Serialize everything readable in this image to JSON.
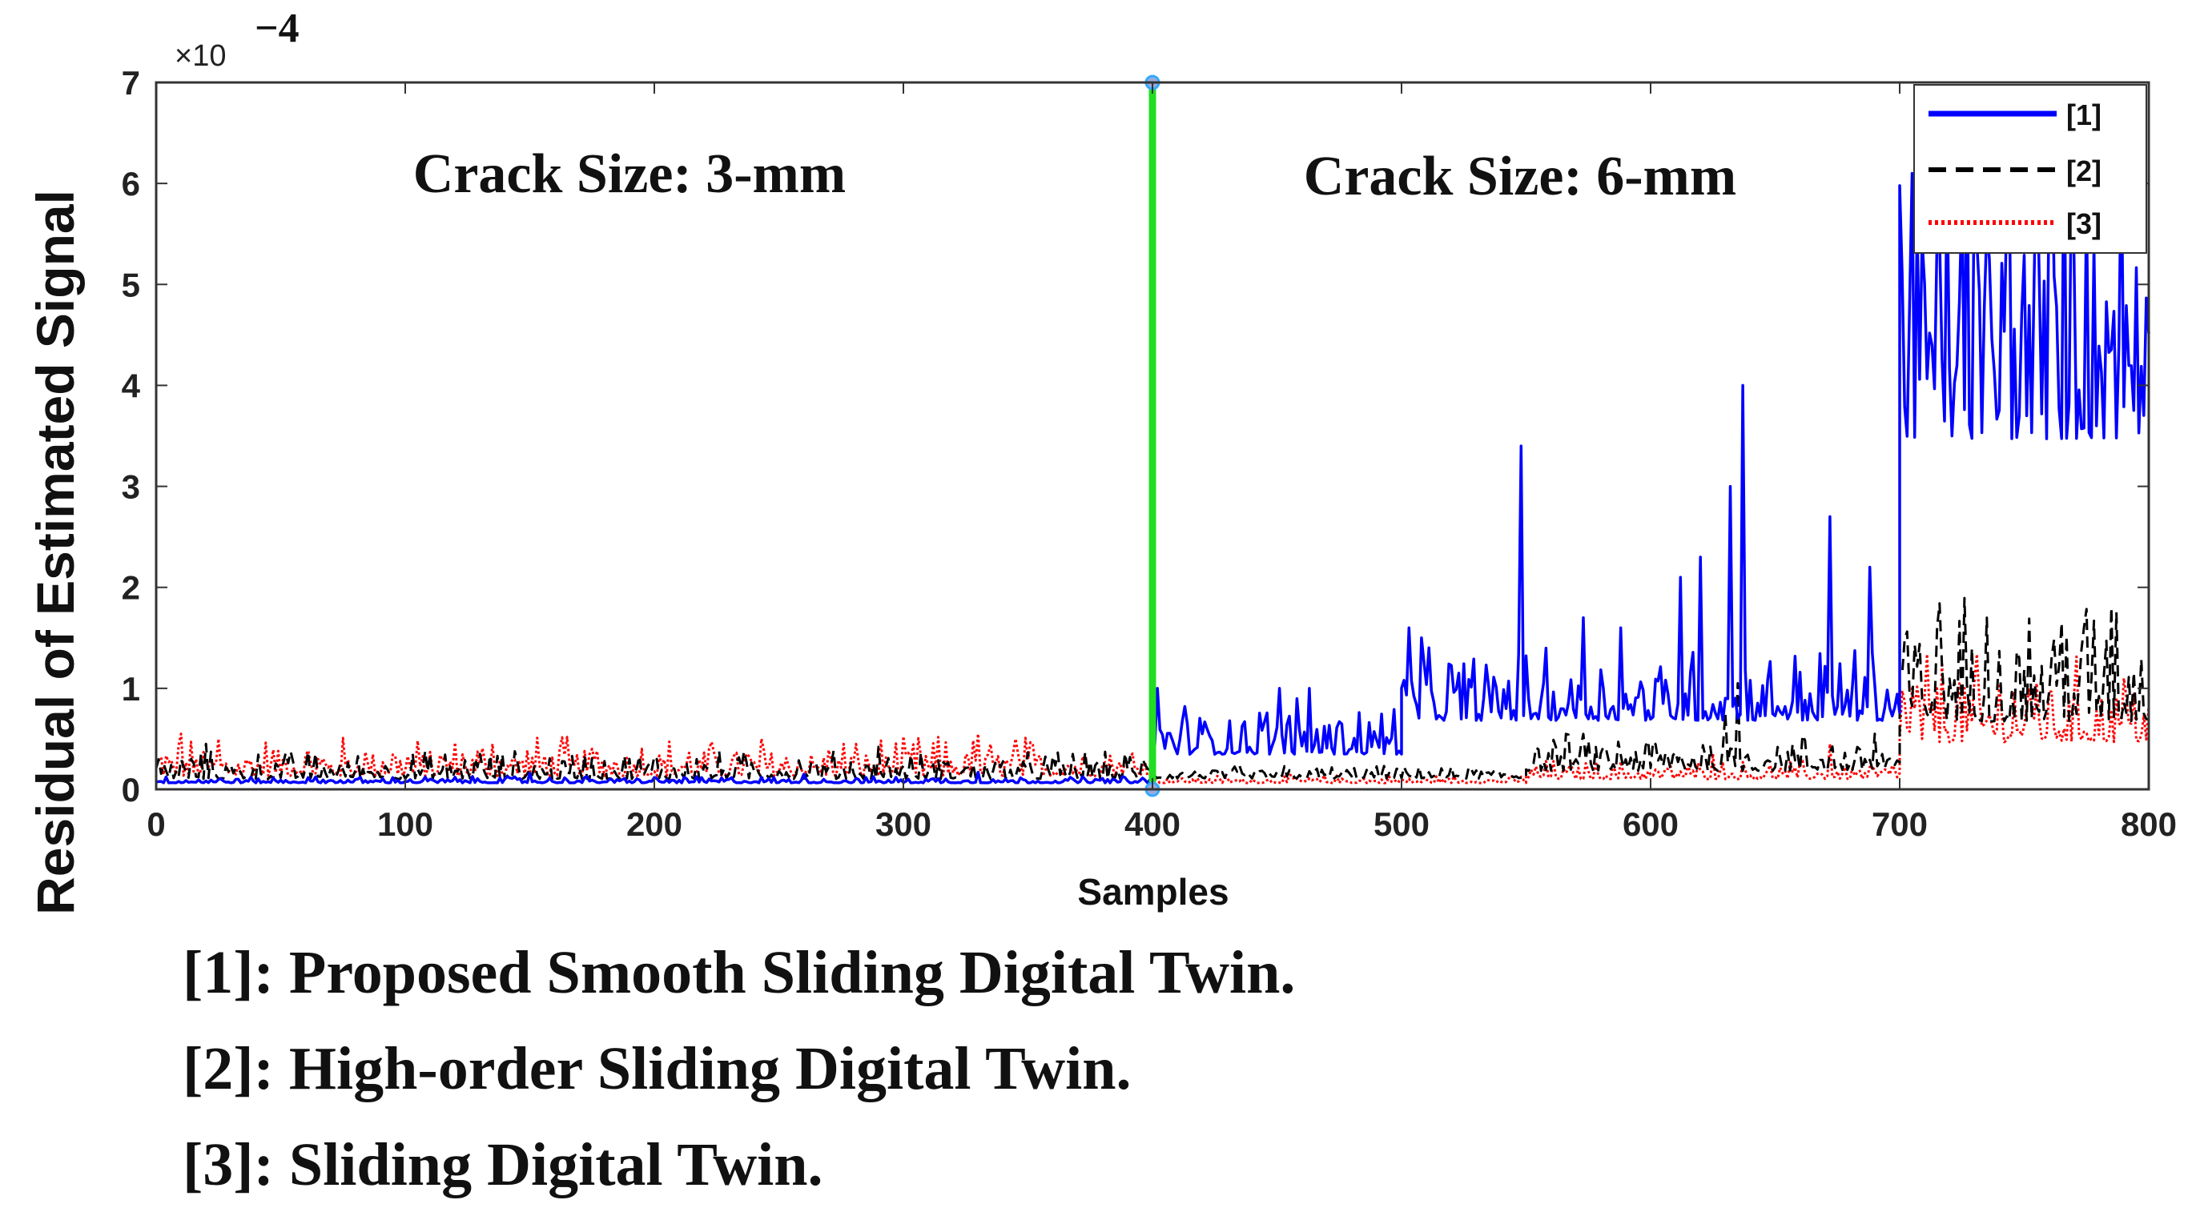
{
  "chart_data": {
    "type": "line",
    "title": "",
    "xlabel": "Samples",
    "ylabel": "Residual of Estimated Signal",
    "xlim": [
      0,
      800
    ],
    "ylim": [
      0,
      7
    ],
    "y_scale_factor_label": "×10",
    "y_scale_exponent": "−4",
    "x_ticks": [
      0,
      100,
      200,
      300,
      400,
      500,
      600,
      700,
      800
    ],
    "y_ticks": [
      0,
      1,
      2,
      3,
      4,
      5,
      6,
      7
    ],
    "divider": {
      "x": 400,
      "color": "#22dd22"
    },
    "annotations": [
      {
        "text": "Crack Size: 3-mm",
        "x": 190,
        "y": 6.1
      },
      {
        "text": "Crack Size: 6-mm",
        "x": 590,
        "y": 6.1
      }
    ],
    "legend_position": "top-right",
    "series": [
      {
        "name": "[1]",
        "color": "#0000ff",
        "style": "solid",
        "segments": [
          {
            "x_range": [
              0,
              400
            ],
            "base": 0.07,
            "amp": 0.04,
            "spikes": [
              [
                150,
                0.16
              ],
              [
                260,
                0.15
              ],
              [
                330,
                0.17
              ]
            ]
          },
          {
            "x_range": [
              401,
              500
            ],
            "base": 0.4,
            "amp": 0.35,
            "spikes": [
              [
                402,
                1.0
              ],
              [
                451,
                1.0
              ],
              [
                463,
                1.0
              ]
            ]
          },
          {
            "x_range": [
              500,
              700
            ],
            "base": 0.75,
            "amp": 0.45,
            "spikes": [
              [
                503,
                1.6
              ],
              [
                508,
                1.5
              ],
              [
                548,
                3.4
              ],
              [
                573,
                1.7
              ],
              [
                588,
                1.6
              ],
              [
                612,
                2.1
              ],
              [
                620,
                2.3
              ],
              [
                632,
                3.0
              ],
              [
                637,
                4.0
              ],
              [
                672,
                2.7
              ],
              [
                688,
                2.2
              ]
            ]
          },
          {
            "x_range": [
              700,
              800
            ],
            "base": 3.8,
            "amp": 2.2,
            "spikes": [
              [
                705,
                6.1
              ],
              [
                725,
                5.9
              ],
              [
                760,
                6.0
              ],
              [
                775,
                5.8
              ]
            ]
          }
        ]
      },
      {
        "name": "[2]",
        "color": "#000000",
        "style": "dashed",
        "segments": [
          {
            "x_range": [
              0,
              400
            ],
            "base": 0.13,
            "amp": 0.18,
            "spikes": [
              [
                20,
                0.45
              ],
              [
                130,
                0.35
              ],
              [
                200,
                0.33
              ],
              [
                290,
                0.42
              ]
            ]
          },
          {
            "x_range": [
              401,
              550
            ],
            "base": 0.12,
            "amp": 0.08,
            "spikes": []
          },
          {
            "x_range": [
              550,
              700
            ],
            "base": 0.22,
            "amp": 0.25,
            "spikes": [
              [
                630,
                0.75
              ],
              [
                635,
                1.05
              ],
              [
                690,
                0.55
              ]
            ]
          },
          {
            "x_range": [
              700,
              800
            ],
            "base": 0.8,
            "amp": 0.85,
            "spikes": [
              [
                715,
                1.6
              ],
              [
                735,
                1.7
              ],
              [
                765,
                1.65
              ],
              [
                785,
                1.8
              ]
            ]
          }
        ]
      },
      {
        "name": "[3]",
        "color": "#ff0000",
        "style": "dotted",
        "segments": [
          {
            "x_range": [
              0,
              400
            ],
            "base": 0.17,
            "amp": 0.25,
            "spikes": [
              [
                10,
                0.55
              ],
              [
                25,
                0.5
              ],
              [
                135,
                0.45
              ],
              [
                175,
                0.4
              ],
              [
                330,
                0.55
              ],
              [
                345,
                0.5
              ]
            ]
          },
          {
            "x_range": [
              401,
              550
            ],
            "base": 0.07,
            "amp": 0.05,
            "spikes": []
          },
          {
            "x_range": [
              550,
              700
            ],
            "base": 0.12,
            "amp": 0.12,
            "spikes": [
              [
                625,
                0.35
              ],
              [
                672,
                0.45
              ]
            ]
          },
          {
            "x_range": [
              700,
              800
            ],
            "base": 0.55,
            "amp": 0.55,
            "spikes": [
              [
                715,
                1.0
              ],
              [
                755,
                1.05
              ],
              [
                790,
                1.1
              ]
            ]
          }
        ]
      }
    ]
  },
  "captions": [
    "[1]: Proposed Smooth Sliding Digital Twin.",
    "[2]: High-order Sliding Digital Twin.",
    "[3]: Sliding Digital Twin."
  ]
}
